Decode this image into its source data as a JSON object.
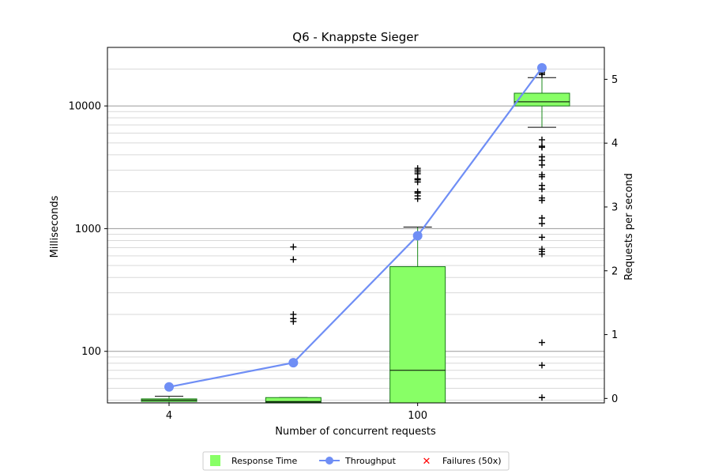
{
  "chart_data": {
    "type": "box",
    "title": "Q6 - Knappste Sieger",
    "xlabel": "Number of concurrent requests",
    "ylabel_left": "Milliseconds",
    "ylabel_right": "Requests per second",
    "y_left_scale": "log",
    "y_left_range": [
      38,
      30000
    ],
    "y_left_ticks": [
      100,
      1000,
      10000
    ],
    "y_right_range": [
      -0.07,
      5.5
    ],
    "y_right_ticks": [
      0,
      1,
      2,
      3,
      4,
      5
    ],
    "x_ticks": [
      {
        "slot": 1,
        "label": "4"
      },
      {
        "slot": 3,
        "label": "100"
      }
    ],
    "grid": true,
    "legend_position": "bottom",
    "legend": [
      {
        "label": "Response Time",
        "marker": "square",
        "color": "#88ff66"
      },
      {
        "label": "Throughput",
        "marker": "line-circle",
        "color": "#6f8ef5"
      },
      {
        "label": "Failures (50x)",
        "marker": "x",
        "color": "#ff0000"
      }
    ],
    "response_time_boxes": [
      {
        "slot": 1,
        "q1": 39,
        "median": 40,
        "q3": 41,
        "whisker_low": 38,
        "whisker_high": 43,
        "outliers": []
      },
      {
        "slot": 2,
        "q1": 38.5,
        "median": 39,
        "q3": 42,
        "whisker_low": 38,
        "whisker_high": 42,
        "outliers": [
          175,
          185,
          200,
          560,
          710
        ]
      },
      {
        "slot": 3,
        "q1": 38,
        "median": 70,
        "q3": 490,
        "whisker_low": 38,
        "whisker_high": 1030,
        "outliers": [
          1750,
          1850,
          1950,
          2000,
          2400,
          2500,
          2550,
          2800,
          2900,
          3000,
          3100
        ]
      },
      {
        "slot": 4,
        "q1": 10000,
        "median": 10800,
        "q3": 12700,
        "whisker_low": 6700,
        "whisker_high": 17000,
        "outliers": [
          42,
          77,
          118,
          620,
          650,
          680,
          850,
          1100,
          1220,
          1700,
          1780,
          2100,
          2250,
          2650,
          2750,
          3300,
          3600,
          3850,
          4600,
          4700,
          5300,
          18000,
          18500,
          19000,
          19500,
          20000
        ]
      }
    ],
    "throughput": {
      "name": "Throughput",
      "points": [
        {
          "slot": 1,
          "value": 0.18
        },
        {
          "slot": 2,
          "value": 0.56
        },
        {
          "slot": 3,
          "value": 2.55
        },
        {
          "slot": 4,
          "value": 5.18
        }
      ]
    },
    "failures": []
  }
}
